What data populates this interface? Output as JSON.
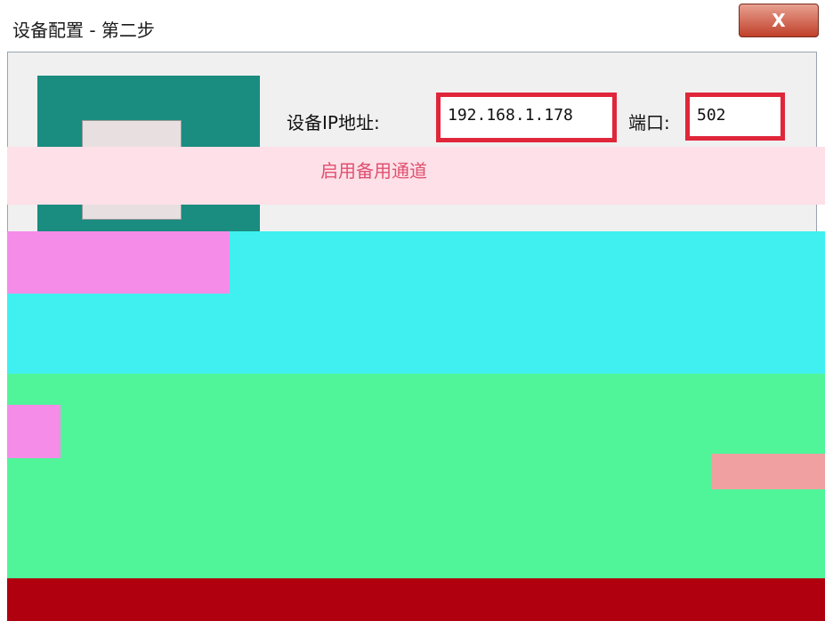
{
  "window": {
    "title": "设备配置 - 第二步",
    "close": "X"
  },
  "form": {
    "ip_label": "设备IP地址:",
    "ip_value": "192.168.1.178",
    "port_label": "端口:",
    "port_value": "502",
    "backup_channel": "启用备用通道"
  }
}
